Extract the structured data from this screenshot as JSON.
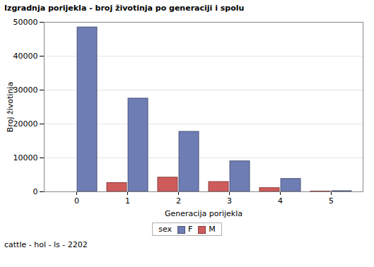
{
  "chart_data": {
    "type": "bar",
    "title": "Izgradnja porijekla - broj životinja po generaciji i spolu",
    "x_label": "Generacija porijekla",
    "y_label": "Broj životinja",
    "categories": [
      "0",
      "1",
      "2",
      "3",
      "4",
      "5"
    ],
    "series": [
      {
        "name": "F",
        "color": "#6F7DB5",
        "values": [
          48500,
          27500,
          17700,
          9000,
          3800,
          200
        ]
      },
      {
        "name": "M",
        "color": "#D05B5B",
        "values": [
          null,
          2600,
          4200,
          2900,
          1100,
          100
        ]
      }
    ],
    "ylim": [
      0,
      50000
    ],
    "yticks": [
      0,
      10000,
      20000,
      30000,
      40000,
      50000
    ],
    "grid": true,
    "legend": "bottom",
    "legend_title": "sex",
    "annotations": [
      "cattle - hol - ls - 2202"
    ]
  }
}
